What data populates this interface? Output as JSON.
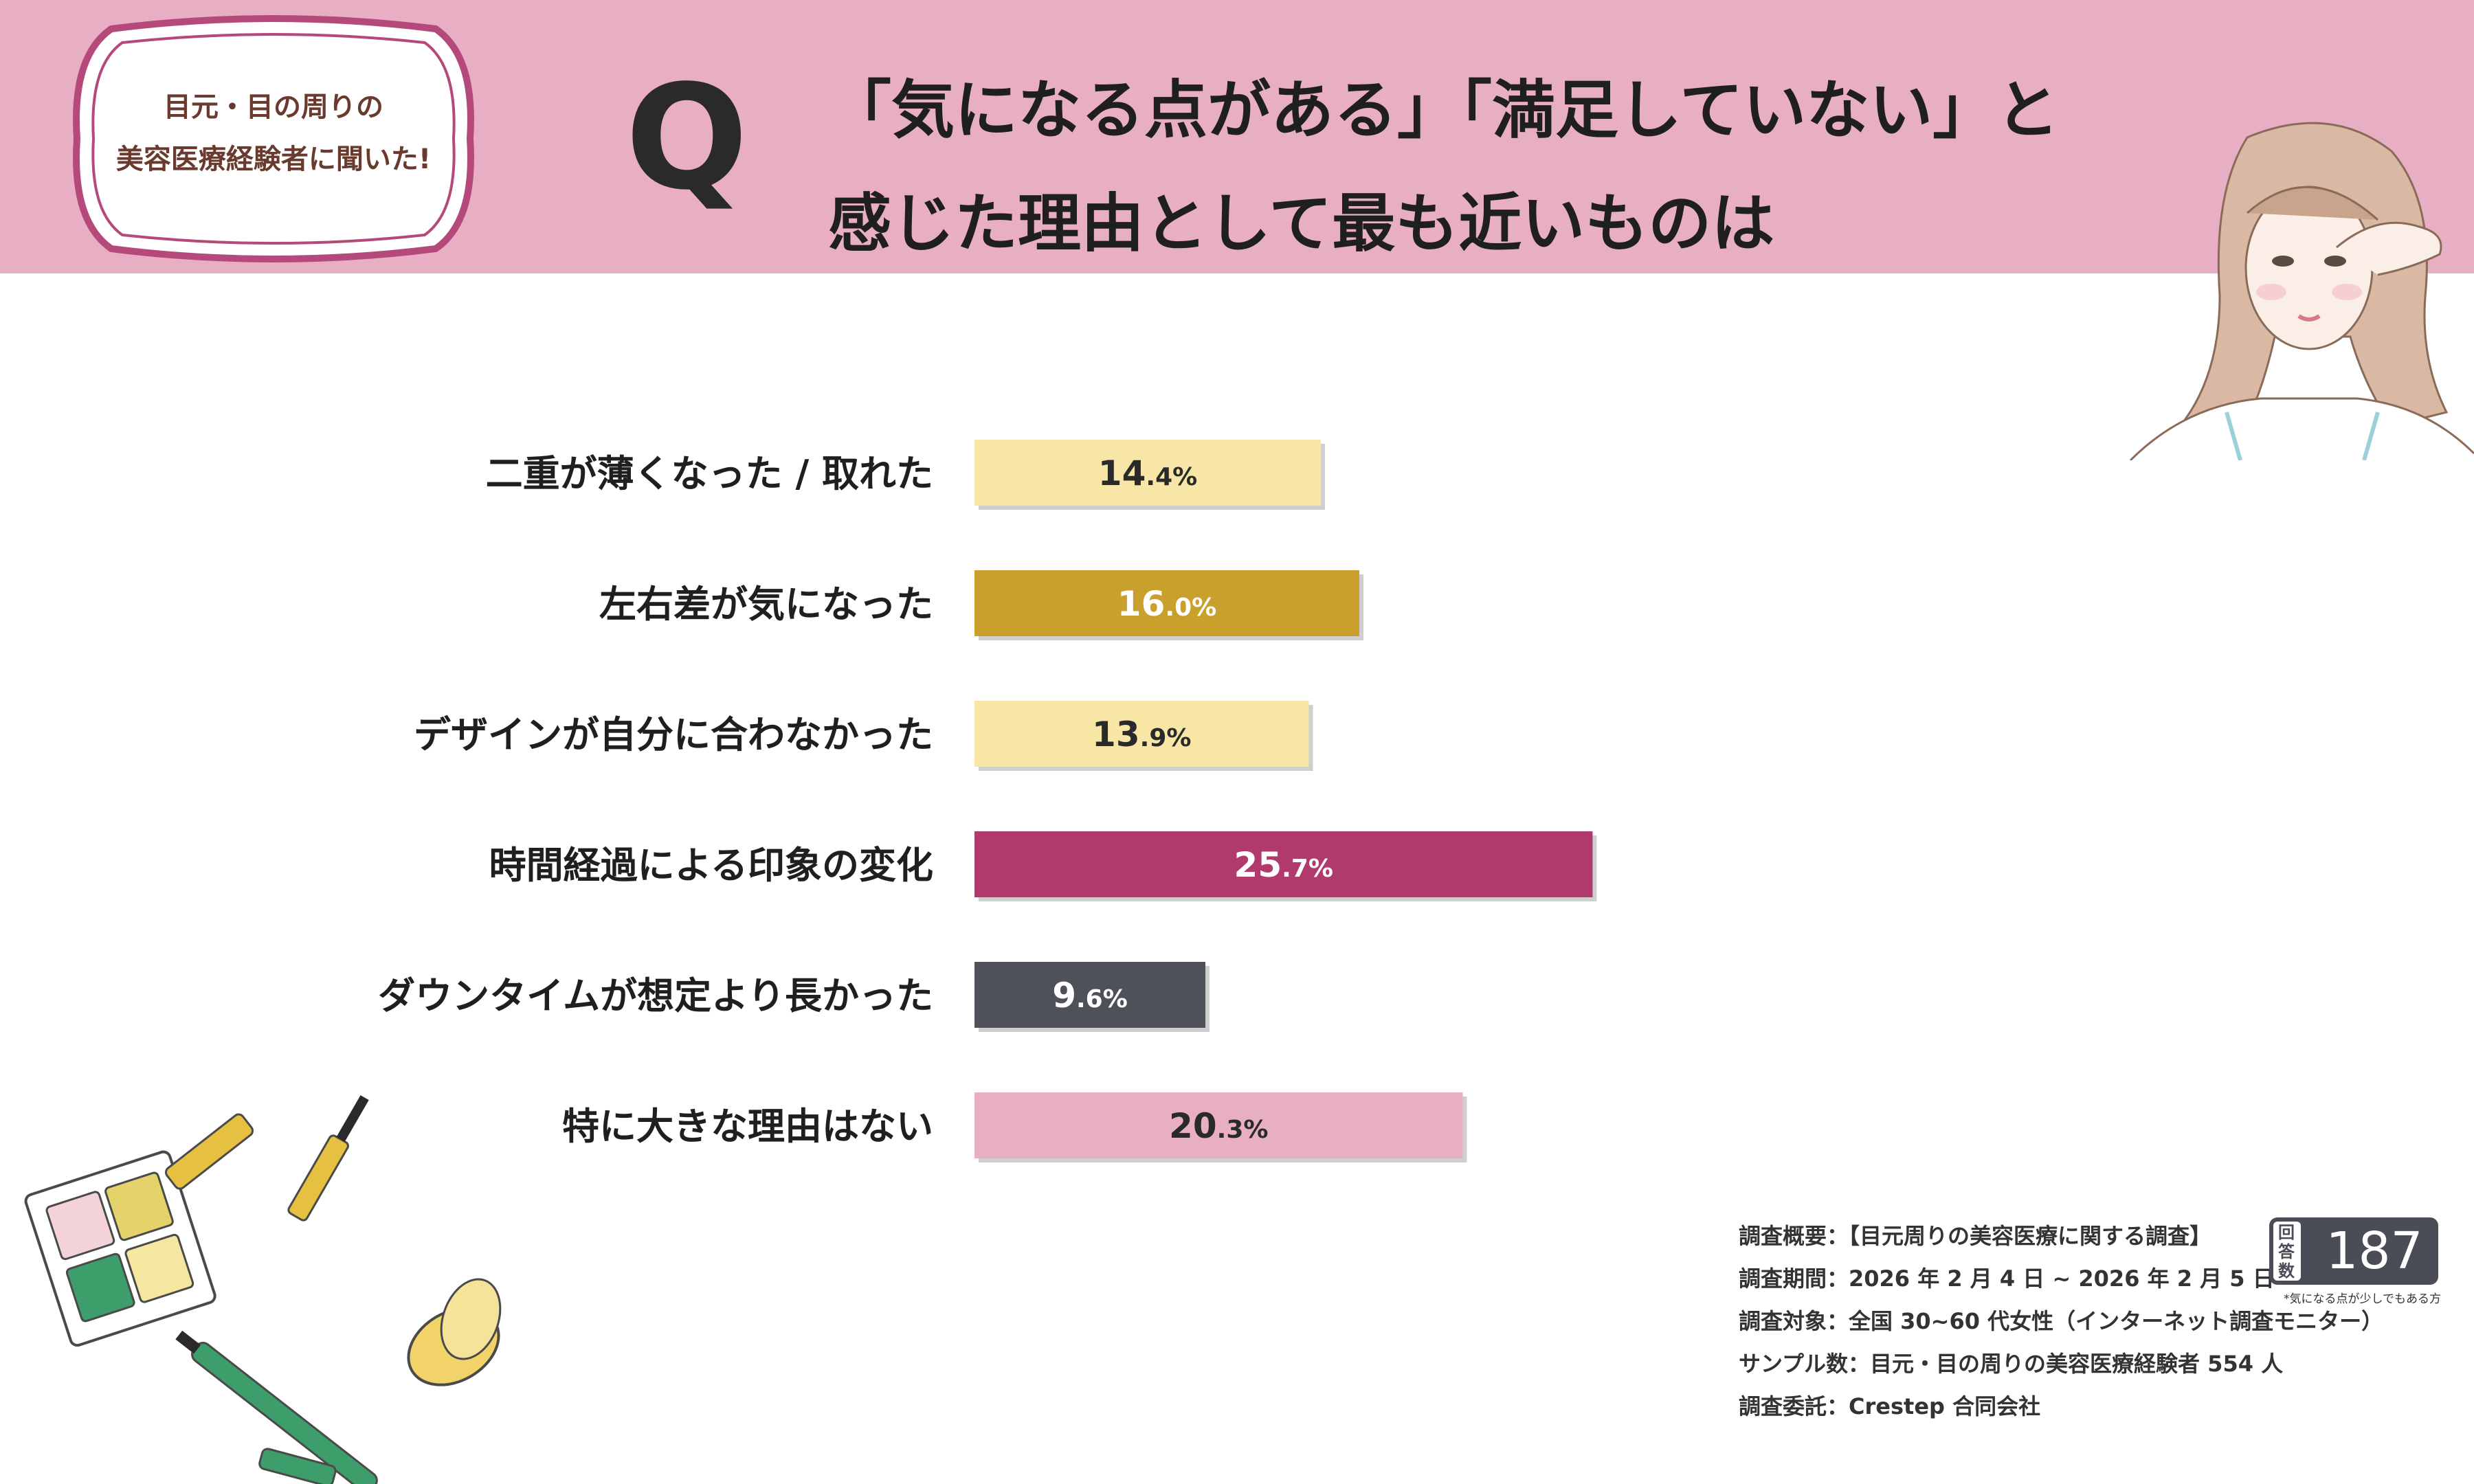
{
  "badge": {
    "line1": "目元・目の周りの",
    "line2": "美容医療経験者に聞いた!"
  },
  "question": {
    "letter": "Q",
    "line1": "「気になる点がある」「満足していない」と",
    "line2": "感じた理由として最も近いものは"
  },
  "chart_data": {
    "type": "bar",
    "orientation": "horizontal",
    "categories": [
      "二重が薄くなった / 取れた",
      "左右差が気になった",
      "デザインが自分に合わなかった",
      "時間経過による印象の変化",
      "ダウンタイムが想定より長かった",
      "特に大きな理由はない"
    ],
    "values": [
      14.4,
      16.0,
      13.9,
      25.7,
      9.6,
      20.3
    ],
    "unit": "%",
    "bar_colors": [
      "#f7e6a6",
      "#c9a02c",
      "#f7e6a6",
      "#b03a6c",
      "#4e5158",
      "#e8aec4"
    ],
    "label_colors": [
      "#2a2a2a",
      "#ffffff",
      "#2a2a2a",
      "#ffffff",
      "#ffffff",
      "#2a2a2a"
    ]
  },
  "survey": {
    "lines": [
      "調査概要：【目元周りの美容医療に関する調査】",
      "調査期間：2026 年 2 月 4 日 ~ 2026 年 2 月 5 日",
      "調査対象：全国 30~60 代女性（インターネット調査モニター）",
      "サンプル数：目元・目の周りの美容医療経験者 554 人",
      "調査委託：Crestep 合同会社"
    ],
    "count_label": "回答数",
    "count_value": "187",
    "count_note": "*気になる点が少しでもある方"
  },
  "colors": {
    "header": "#e8aec4",
    "badge_border": "#b54a7a",
    "count_box": "#4a4d55"
  }
}
